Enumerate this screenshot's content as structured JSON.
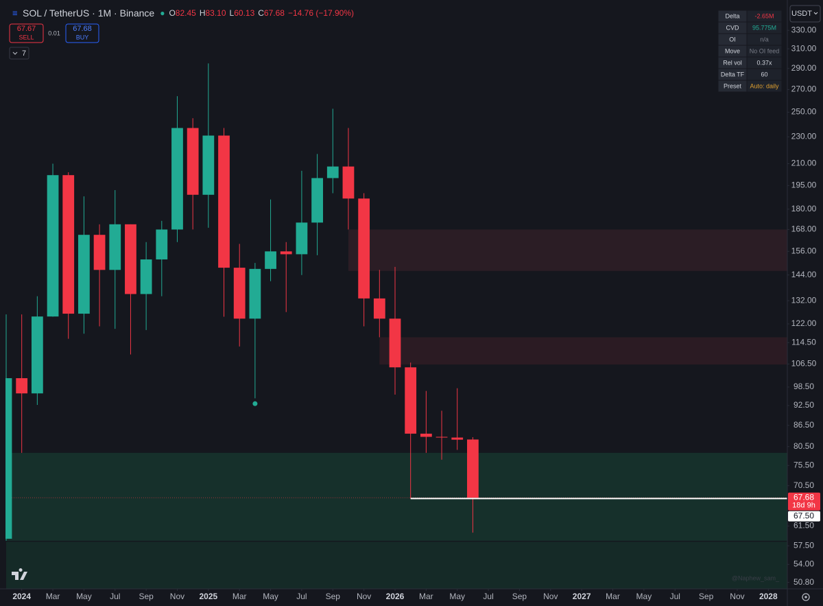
{
  "chart_data": {
    "type": "candlestick",
    "symbol": "SOL / TetherUS · 1M · Binance",
    "ohlc_legend": [
      {
        "key": "O",
        "value": "82.45"
      },
      {
        "key": "H",
        "value": "83.10"
      },
      {
        "key": "L",
        "value": "60.13"
      },
      {
        "key": "C",
        "value": "67.68"
      }
    ],
    "change": "−14.76 (−17.90%)",
    "trade": {
      "sell_price": "67.67",
      "sell": "SELL",
      "spread": "0.01",
      "buy_price": "67.68",
      "buy": "BUY"
    },
    "indicator_count": "7",
    "currency": "USDT",
    "x": [
      "2023-12",
      "2024-01",
      "2024-02",
      "2024-03",
      "2024-04",
      "2024-05",
      "2024-06",
      "2024-07",
      "2024-08",
      "2024-09",
      "2024-10",
      "2024-11",
      "2024-12",
      "2025-01",
      "2025-02",
      "2025-03",
      "2025-04",
      "2025-05",
      "2025-06",
      "2025-07",
      "2025-08",
      "2025-09",
      "2025-10",
      "2025-11",
      "2025-12",
      "2026-01",
      "2026-02",
      "2026-03",
      "2026-04",
      "2026-05",
      "2026-06"
    ],
    "open": [
      58.9,
      101.5,
      96.4,
      125.1,
      202,
      126.3,
      165,
      146.5,
      171,
      135,
      151.8,
      168,
      237,
      189,
      231,
      147.6,
      124.2,
      147,
      156,
      154.5,
      172,
      200,
      208,
      186.6,
      133,
      124.2,
      105.3,
      84.1,
      83.2,
      83,
      82.45
    ],
    "high": [
      126,
      126,
      134,
      210,
      204,
      188,
      171,
      192,
      171,
      161,
      173,
      264,
      245,
      295,
      237,
      160,
      150,
      186,
      161,
      205,
      217,
      253,
      237,
      190,
      146.5,
      148,
      107,
      97.2,
      90.9,
      98.1,
      83.1
    ],
    "low": [
      58.5,
      78.8,
      92.7,
      125,
      116,
      118,
      121,
      120,
      110,
      119.5,
      134,
      161,
      168,
      169,
      125,
      113,
      94.8,
      141,
      127,
      144,
      154,
      190,
      168,
      121,
      116.6,
      96,
      67.5,
      78.8,
      77,
      79.6,
      60.13
    ],
    "close": [
      101.5,
      96.4,
      125.1,
      202,
      126.3,
      165,
      146.5,
      171,
      135,
      151.8,
      168,
      237,
      189,
      231,
      147.6,
      124.2,
      147,
      156,
      154.5,
      172,
      200,
      208,
      186.6,
      133,
      124.2,
      105.3,
      84.1,
      83.2,
      83,
      82.4,
      67.68
    ],
    "up_color": "#22ab94",
    "down_color": "#f23645",
    "log_scale": true,
    "grid": false,
    "ylim": [
      49.7,
      359
    ],
    "yticks": [
      {
        "value": 330,
        "label": "330.00"
      },
      {
        "value": 310,
        "label": "310.00"
      },
      {
        "value": 290,
        "label": "290.00"
      },
      {
        "value": 270,
        "label": "270.00"
      },
      {
        "value": 250,
        "label": "250.00"
      },
      {
        "value": 230,
        "label": "230.00"
      },
      {
        "value": 210,
        "label": "210.00"
      },
      {
        "value": 195,
        "label": "195.00"
      },
      {
        "value": 180,
        "label": "180.00"
      },
      {
        "value": 168,
        "label": "168.00"
      },
      {
        "value": 156,
        "label": "156.00"
      },
      {
        "value": 144,
        "label": "144.00"
      },
      {
        "value": 132,
        "label": "132.00"
      },
      {
        "value": 122,
        "label": "122.00"
      },
      {
        "value": 114.5,
        "label": "114.50"
      },
      {
        "value": 106.5,
        "label": "106.50"
      },
      {
        "value": 98.5,
        "label": "98.50"
      },
      {
        "value": 92.5,
        "label": "92.50"
      },
      {
        "value": 86.5,
        "label": "86.50"
      },
      {
        "value": 80.5,
        "label": "80.50"
      },
      {
        "value": 75.5,
        "label": "75.50"
      },
      {
        "value": 70.5,
        "label": "70.50"
      },
      {
        "value": 61.5,
        "label": "61.50"
      },
      {
        "value": 57.5,
        "label": "57.50"
      },
      {
        "value": 54,
        "label": "54.00"
      },
      {
        "value": 50.8,
        "label": "50.80"
      }
    ],
    "xlim": [
      "2023-12",
      "2028-02"
    ],
    "xticks": [
      {
        "value": "2024-01",
        "label": "2024"
      },
      {
        "value": "2024-03",
        "label": "Mar"
      },
      {
        "value": "2024-05",
        "label": "May"
      },
      {
        "value": "2024-07",
        "label": "Jul"
      },
      {
        "value": "2024-09",
        "label": "Sep"
      },
      {
        "value": "2024-11",
        "label": "Nov"
      },
      {
        "value": "2025-01",
        "label": "2025"
      },
      {
        "value": "2025-03",
        "label": "Mar"
      },
      {
        "value": "2025-05",
        "label": "May"
      },
      {
        "value": "2025-07",
        "label": "Jul"
      },
      {
        "value": "2025-09",
        "label": "Sep"
      },
      {
        "value": "2025-11",
        "label": "Nov"
      },
      {
        "value": "2026-01",
        "label": "2026"
      },
      {
        "value": "2026-03",
        "label": "Mar"
      },
      {
        "value": "2026-05",
        "label": "May"
      },
      {
        "value": "2026-07",
        "label": "Jul"
      },
      {
        "value": "2026-09",
        "label": "Sep"
      },
      {
        "value": "2026-11",
        "label": "Nov"
      },
      {
        "value": "2027-01",
        "label": "2027"
      },
      {
        "value": "2027-03",
        "label": "Mar"
      },
      {
        "value": "2027-05",
        "label": "May"
      },
      {
        "value": "2027-07",
        "label": "Jul"
      },
      {
        "value": "2027-09",
        "label": "Sep"
      },
      {
        "value": "2027-11",
        "label": "Nov"
      },
      {
        "value": "2028-01",
        "label": "2028"
      }
    ],
    "zones": [
      {
        "top": 78.8,
        "bottom": 58.5,
        "from": "2023-12",
        "color": "#16302b"
      },
      {
        "top": 58.3,
        "bottom": 49.7,
        "from": "2023-12",
        "color": "#152a27"
      },
      {
        "top": 168,
        "bottom": 146,
        "from": "2025-10",
        "color": "#2b1d25"
      },
      {
        "top": 116.6,
        "bottom": 106.3,
        "from": "2025-12",
        "color": "#2b1b23"
      }
    ],
    "levels": [
      {
        "value": 67.5,
        "from": "2026-02",
        "color": "#ffffff"
      }
    ],
    "markers": [
      {
        "x": "2025-04",
        "value": 93.1,
        "color": "#22ab94"
      }
    ],
    "price_labels": [
      {
        "value": 67.68,
        "label": "67.68",
        "sub": "18d 9h",
        "color": "#f23645",
        "text_color": "#ffffff"
      },
      {
        "value": 67.5,
        "label": "67.50",
        "color": "#ffffff",
        "text_color": "#131722"
      }
    ],
    "table": {
      "rows": [
        {
          "label": "Delta",
          "value": "-2.65M",
          "color": "#f23645"
        },
        {
          "label": "CVD",
          "value": "95.775M",
          "color": "#22ab94"
        },
        {
          "label": "OI",
          "value": "n/a",
          "color": "#787b86"
        },
        {
          "label": "Move",
          "value": "No OI feed",
          "color": "#787b86"
        },
        {
          "label": "Rel vol",
          "value": "0.37x",
          "color": "#d1d4dc"
        },
        {
          "label": "Delta TF",
          "value": "60",
          "color": "#d1d4dc"
        },
        {
          "label": "Preset",
          "value": "Auto: daily",
          "color": "#e0a030"
        }
      ]
    },
    "watermark": "@Naphew_sam_"
  }
}
